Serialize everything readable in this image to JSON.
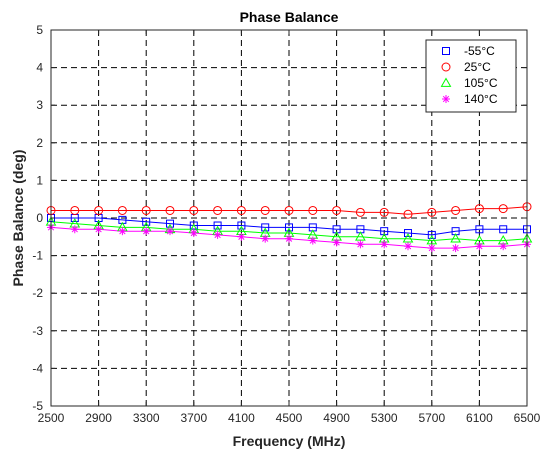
{
  "chart_data": {
    "type": "line",
    "title": "Phase Balance",
    "xlabel": "Frequency (MHz)",
    "ylabel": "Phase Balance (deg)",
    "xlim": [
      2500,
      6500
    ],
    "ylim": [
      -5,
      5
    ],
    "xticks": [
      "2500",
      "2900",
      "3300",
      "3700",
      "4100",
      "4500",
      "4900",
      "5300",
      "5700",
      "6100",
      "6500"
    ],
    "yticks": [
      "5",
      "4",
      "3",
      "2",
      "1",
      "0",
      "-1",
      "-2",
      "-3",
      "-4",
      "-5"
    ],
    "grid": true,
    "legend_position": "top-right",
    "x": [
      2500,
      2700,
      2900,
      3100,
      3300,
      3500,
      3700,
      3900,
      4100,
      4300,
      4500,
      4700,
      4900,
      5100,
      5300,
      5500,
      5700,
      5900,
      6100,
      6300,
      6500
    ],
    "series": [
      {
        "name": "-55°C",
        "marker": "square",
        "color": "#0000ff",
        "values": [
          0.0,
          0.0,
          0.0,
          -0.05,
          -0.1,
          -0.15,
          -0.2,
          -0.2,
          -0.2,
          -0.25,
          -0.25,
          -0.25,
          -0.3,
          -0.3,
          -0.35,
          -0.4,
          -0.45,
          -0.35,
          -0.3,
          -0.3,
          -0.3
        ]
      },
      {
        "name": "25°C",
        "marker": "circle",
        "color": "#ff0000",
        "values": [
          0.2,
          0.2,
          0.2,
          0.2,
          0.2,
          0.2,
          0.2,
          0.2,
          0.2,
          0.2,
          0.2,
          0.2,
          0.2,
          0.15,
          0.15,
          0.1,
          0.15,
          0.2,
          0.25,
          0.25,
          0.3
        ]
      },
      {
        "name": "105°C",
        "marker": "triangle",
        "color": "#00ff00",
        "values": [
          -0.1,
          -0.15,
          -0.2,
          -0.25,
          -0.25,
          -0.3,
          -0.3,
          -0.35,
          -0.35,
          -0.4,
          -0.4,
          -0.45,
          -0.5,
          -0.5,
          -0.55,
          -0.55,
          -0.6,
          -0.55,
          -0.6,
          -0.6,
          -0.55
        ]
      },
      {
        "name": "140°C",
        "marker": "asterisk",
        "color": "#ff00ff",
        "values": [
          -0.25,
          -0.3,
          -0.3,
          -0.35,
          -0.35,
          -0.35,
          -0.4,
          -0.45,
          -0.5,
          -0.55,
          -0.55,
          -0.6,
          -0.65,
          -0.7,
          -0.7,
          -0.75,
          -0.8,
          -0.8,
          -0.75,
          -0.75,
          -0.7
        ]
      }
    ]
  }
}
